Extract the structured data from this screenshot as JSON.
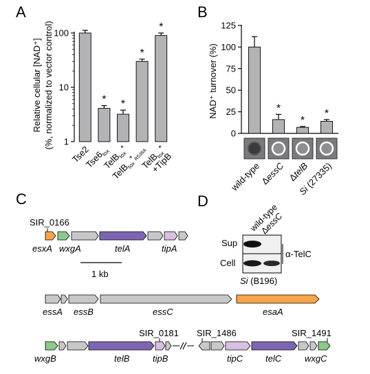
{
  "chart_data": [
    {
      "panel": "A",
      "type": "bar",
      "ylabel_lines": [
        "Relative cellular [NAD⁺]",
        "(%, normalized to vector control)"
      ],
      "yscale": "log",
      "ylim": [
        1,
        100
      ],
      "yticks": [
        "1",
        "10",
        "100"
      ],
      "ytick_values": [
        1,
        10,
        100
      ],
      "categories": [
        {
          "main": "Tse2",
          "sub": "",
          "sub2": "",
          "extra": ""
        },
        {
          "main": "Tse6",
          "sub": "tox",
          "sub2": "",
          "extra": ""
        },
        {
          "main": "TelB",
          "sub": "tox",
          "sub2": "",
          "extra": ""
        },
        {
          "main": "TelB",
          "sub": "tox",
          "sub2": "R538A",
          "extra": ""
        },
        {
          "main": "TelB",
          "sub": "tox",
          "sub2": "",
          "extra": "+TipB"
        }
      ],
      "values": [
        100,
        4.1,
        3.2,
        30,
        90
      ],
      "errors": [
        12,
        0.5,
        0.6,
        3,
        10
      ],
      "significance": [
        "",
        "*",
        "*",
        "*",
        "*"
      ],
      "label_stars": [
        "",
        "",
        "*",
        "*",
        "*"
      ],
      "bar_color": "#b3b3b6"
    },
    {
      "panel": "B",
      "type": "bar",
      "ylabel": "NAD⁺ turnover (%)",
      "ylim": [
        0,
        125
      ],
      "yticks": [
        "0",
        "25",
        "50",
        "75",
        "100",
        "125"
      ],
      "ytick_values": [
        0,
        25,
        50,
        75,
        100,
        125
      ],
      "categories": [
        {
          "pre": "",
          "main": "wild-type",
          "suffix": ""
        },
        {
          "pre": "Δ",
          "main": "essC",
          "suffix": ""
        },
        {
          "pre": "Δ",
          "main": "telB",
          "suffix": ""
        },
        {
          "pre": "",
          "main": "Si",
          "suffix": " (27335)"
        }
      ],
      "values": [
        100,
        16,
        7,
        14
      ],
      "errors": [
        12,
        6,
        1,
        2
      ],
      "significance": [
        "",
        "*",
        "*",
        "*"
      ],
      "bar_color": "#b3b3b6"
    }
  ],
  "panel_labels": {
    "a": "A",
    "b": "B",
    "c": "C",
    "d": "D"
  },
  "panel_c": {
    "top_label": "SIR_0166",
    "scale_label": "1 kb",
    "rows": [
      {
        "genes": [
          "esxA",
          "wxgA",
          "telA",
          "tipA"
        ]
      },
      {
        "genes": [
          "essA",
          "essB",
          "essC",
          "esaA"
        ]
      },
      {
        "genes": [
          "wxgB",
          "telB",
          "tipB",
          "tipC",
          "telC",
          "wxgC"
        ],
        "labels": [
          "SIR_0181",
          "SIR_1486",
          "SIR_1491"
        ]
      }
    ],
    "colors": {
      "gray": "#c8c8ca",
      "orange": "#f6a54a",
      "green": "#8cc98a",
      "purple": "#7c66b2",
      "pink": "#d9bfe0"
    }
  },
  "panel_d": {
    "lanes": [
      "wild-type",
      "ΔessC"
    ],
    "rows": [
      "Sup",
      "Cell"
    ],
    "antibody": "α-TelC",
    "strain_italic": "Si",
    "strain_rest": " (B196)"
  }
}
